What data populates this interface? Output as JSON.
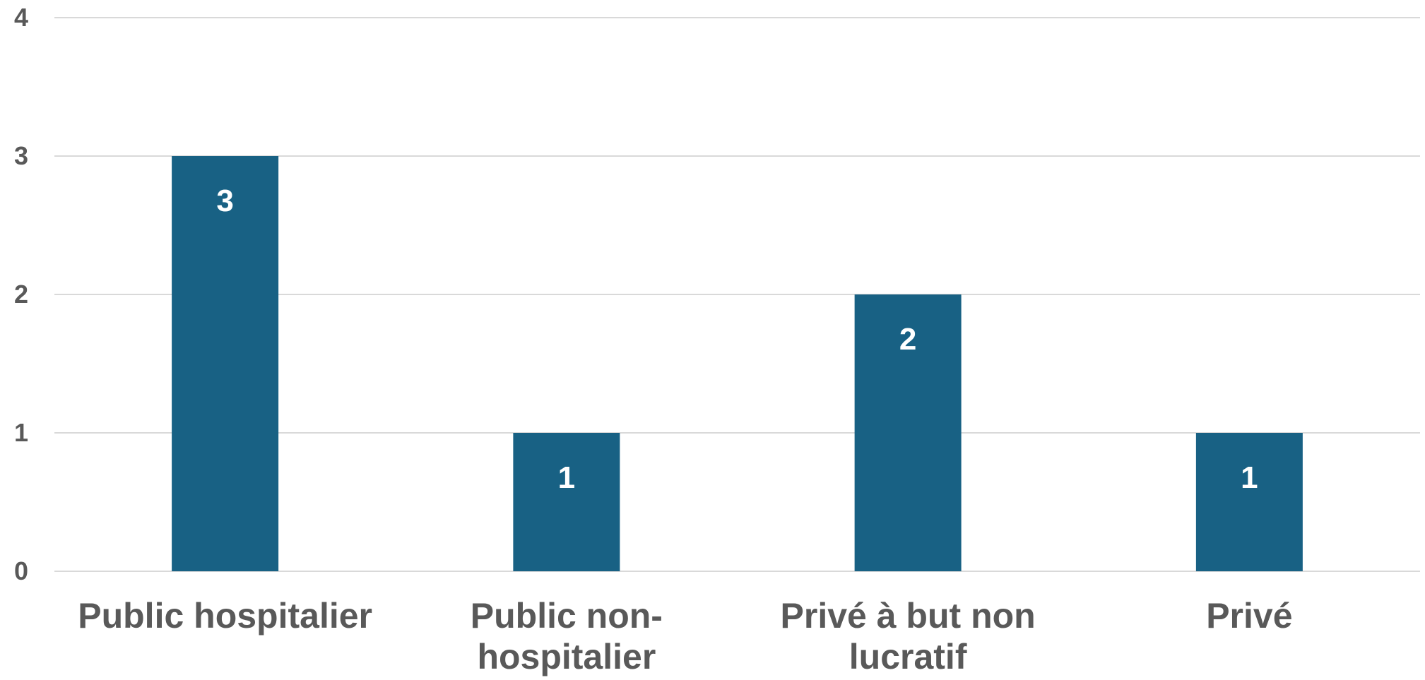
{
  "chart_data": {
    "type": "bar",
    "categories": [
      "Public hospitalier",
      "Public non-hospitalier",
      "Privé à but non lucratif",
      "Privé"
    ],
    "category_lines": [
      [
        "Public hospitalier"
      ],
      [
        "Public non-",
        "hospitalier"
      ],
      [
        "Privé à but non",
        "lucratif"
      ],
      [
        "Privé"
      ]
    ],
    "series": [
      {
        "values": [
          3,
          1,
          2,
          1
        ]
      }
    ],
    "data_labels": [
      "3",
      "1",
      "2",
      "1"
    ],
    "y_ticks": [
      "0",
      "1",
      "2",
      "3",
      "4"
    ],
    "ylim": [
      0,
      4
    ],
    "title": "",
    "xlabel": "",
    "ylabel": "",
    "grid": true,
    "legend": "none"
  },
  "colors": {
    "bar": "#186184",
    "gridline": "#d9d9d9",
    "axis_text": "#595959",
    "data_label": "#ffffff",
    "background": "#ffffff"
  }
}
